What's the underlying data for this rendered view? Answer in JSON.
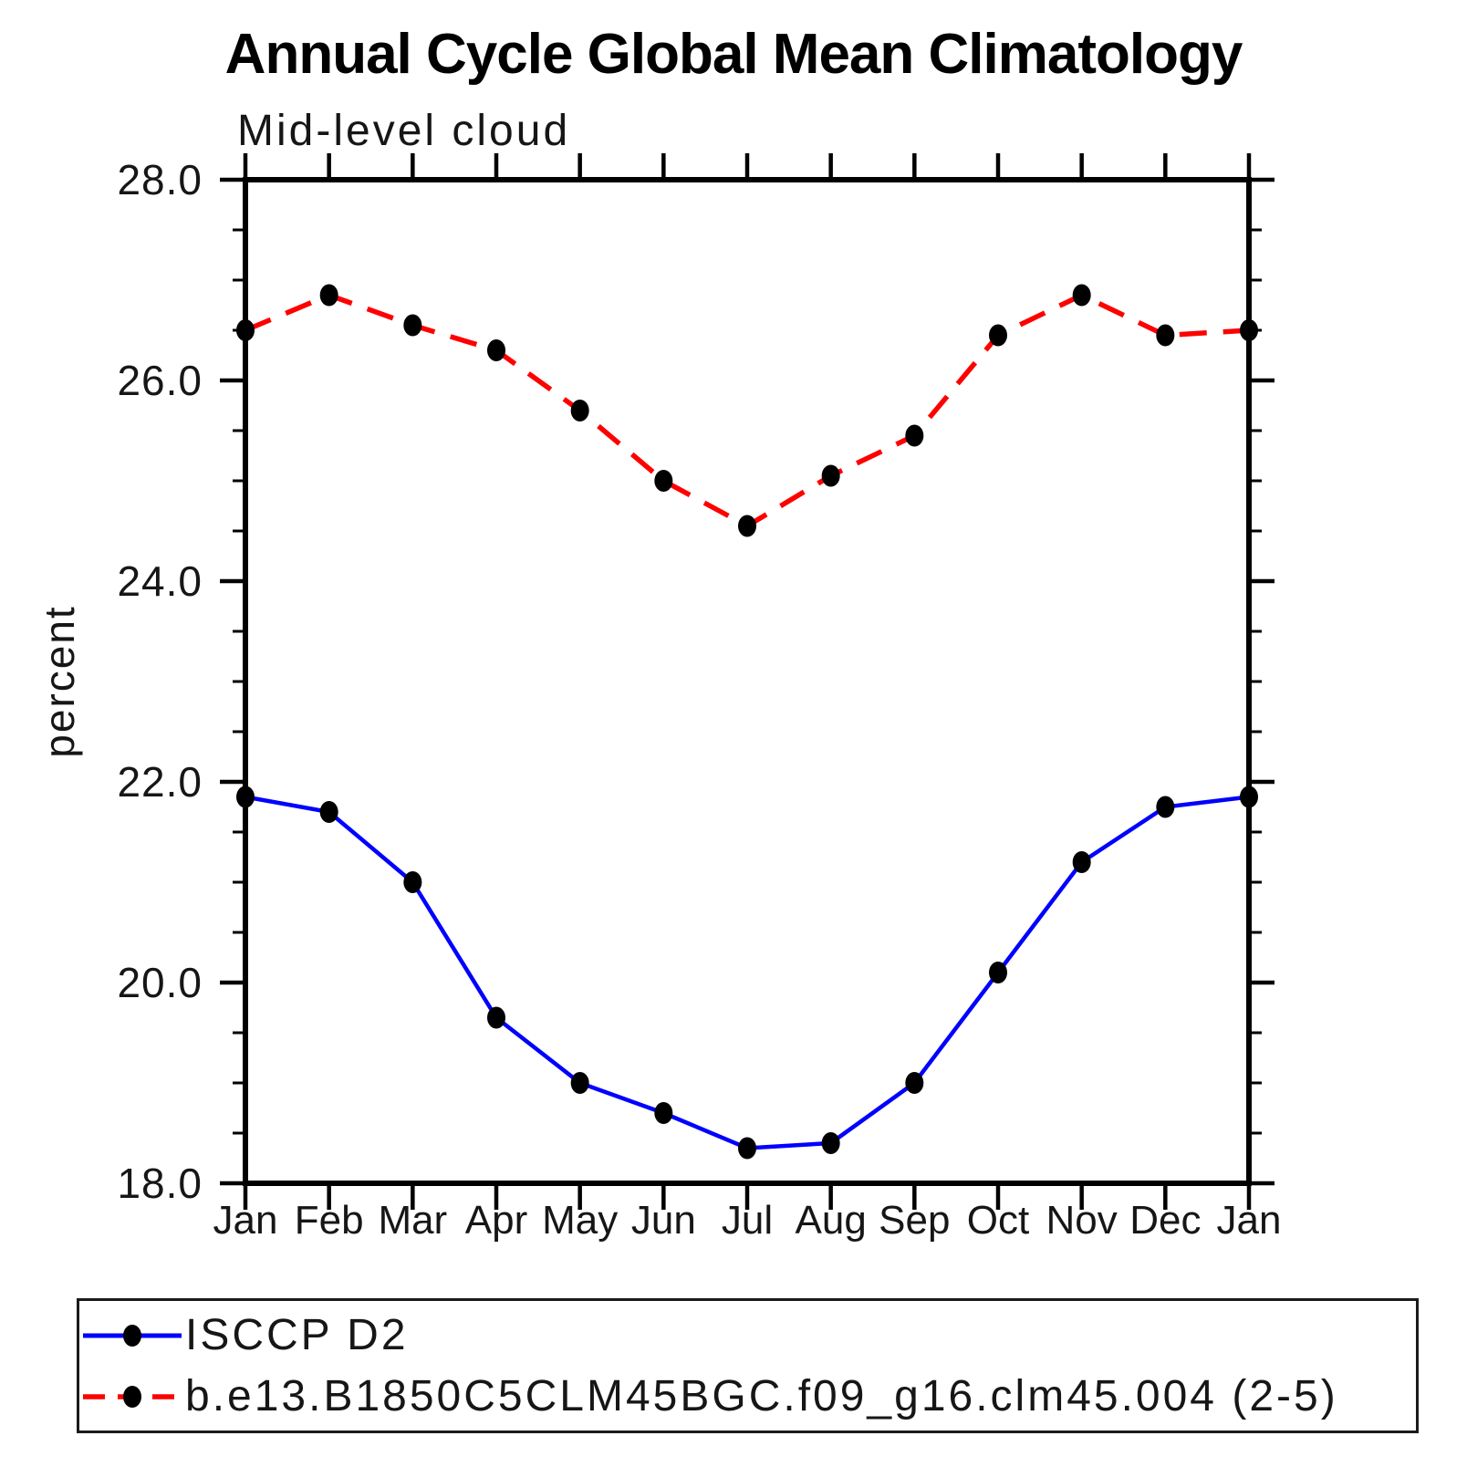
{
  "title": "Annual Cycle Global Mean Climatology",
  "subtitle": "Mid-level cloud",
  "y_axis": {
    "label": "percent"
  },
  "x_axis": {
    "months": [
      "Jan",
      "Feb",
      "Mar",
      "Apr",
      "May",
      "Jun",
      "Jul",
      "Aug",
      "Sep",
      "Oct",
      "Nov",
      "Dec",
      "Jan"
    ]
  },
  "chart_data": {
    "type": "line",
    "title": "Annual Cycle Global Mean Climatology",
    "subtitle": "Mid-level cloud",
    "ylabel": "percent",
    "xlabel": "",
    "categories": [
      "Jan",
      "Feb",
      "Mar",
      "Apr",
      "May",
      "Jun",
      "Jul",
      "Aug",
      "Sep",
      "Oct",
      "Nov",
      "Dec",
      "Jan"
    ],
    "series": [
      {
        "name": "ISCCP D2",
        "color": "#0000ff",
        "line_style": "solid",
        "marker": "filled-circle",
        "marker_color": "#000000",
        "values": [
          21.85,
          21.7,
          21.0,
          19.65,
          19.0,
          18.7,
          18.35,
          18.4,
          19.0,
          20.1,
          21.2,
          21.75,
          21.85
        ]
      },
      {
        "name": "b.e13.B1850C5CLM45BGC.f09_g16.clm45.004 (2-5)",
        "color": "#ff0000",
        "line_style": "dashed",
        "marker": "filled-circle",
        "marker_color": "#000000",
        "values": [
          26.5,
          26.85,
          26.55,
          26.3,
          25.7,
          25.0,
          24.55,
          25.05,
          25.45,
          26.45,
          26.85,
          26.45,
          26.5
        ]
      }
    ],
    "ylim": [
      18.0,
      28.0
    ],
    "ytick_values": [
      18,
      20,
      22,
      24,
      26,
      28
    ],
    "ytick_labels": [
      "18.0",
      "20.0",
      "22.0",
      "24.0",
      "26.0",
      "28.0"
    ],
    "yminor_step": 0.5,
    "grid": false,
    "legend_position": "below"
  }
}
